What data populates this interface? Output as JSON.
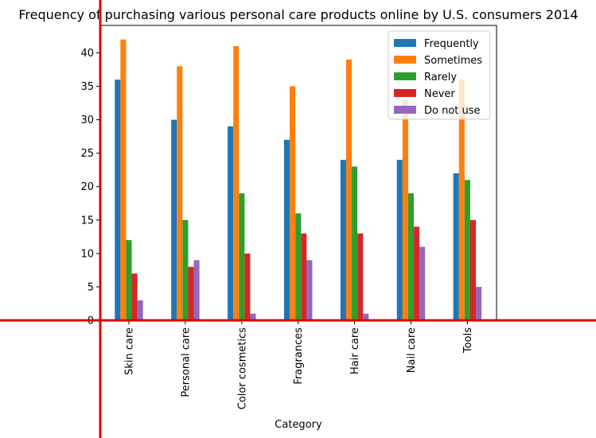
{
  "chart_data": {
    "type": "bar",
    "title": "Frequency of purchasing various personal care products online by U.S. consumers 2014",
    "xlabel": "Category",
    "ylabel": "",
    "ylim": [
      0,
      44.1
    ],
    "yticks": [
      0,
      5,
      10,
      15,
      20,
      25,
      30,
      35,
      40
    ],
    "categories": [
      "Skin care",
      "Personal care",
      "Color cosmetics",
      "Fragrances",
      "Hair care",
      "Nail care",
      "Tools"
    ],
    "series": [
      {
        "name": "Frequently",
        "color": "#1f77b4",
        "values": [
          36,
          30,
          29,
          27,
          24,
          24,
          22
        ]
      },
      {
        "name": "Sometimes",
        "color": "#ff7f0e",
        "values": [
          42,
          38,
          41,
          35,
          39,
          33,
          36
        ]
      },
      {
        "name": "Rarely",
        "color": "#2ca02c",
        "values": [
          12,
          15,
          19,
          16,
          23,
          19,
          21
        ]
      },
      {
        "name": "Never",
        "color": "#d62728",
        "values": [
          7,
          8,
          10,
          13,
          13,
          14,
          15
        ]
      },
      {
        "name": "Do not use",
        "color": "#9467bd",
        "values": [
          3,
          9,
          1,
          9,
          1,
          11,
          5
        ]
      }
    ],
    "legend_position": "top-right",
    "grid": false,
    "overlay_crosshair_color": "#e00000"
  }
}
